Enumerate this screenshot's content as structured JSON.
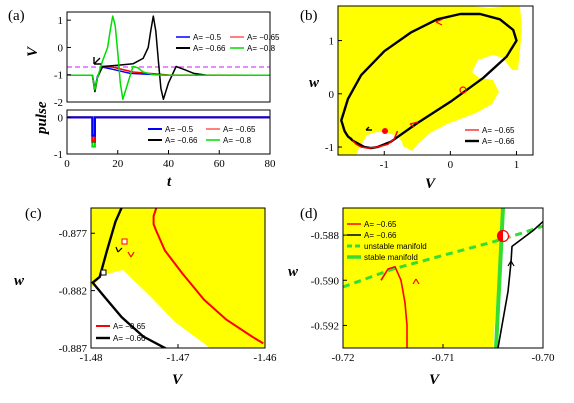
{
  "colors": {
    "red": "#ff0000",
    "black": "#000000",
    "blue": "#0000ff",
    "green": "#00dd00",
    "yellow": "#ffff00",
    "dash": "#dd44ff",
    "manifold": "#33dd33"
  },
  "chart_data": [
    {
      "panel": "(a)",
      "type": "line",
      "ylabel": "V",
      "xlabel": "",
      "xlim": [
        0,
        80
      ],
      "ylim": [
        -2,
        1.3
      ],
      "yticks": [
        "1",
        "0",
        "-1",
        "-2"
      ],
      "xticks": [
        "0",
        "20",
        "40",
        "60",
        "80"
      ],
      "threshold": -0.7,
      "legend": [
        "A= −0.5",
        "A= −0.65",
        "A= −0.66",
        "A= −0.8"
      ],
      "series": [
        {
          "name": "A= −0.5",
          "color": "blue",
          "x": [
            0,
            10,
            11,
            12,
            14,
            18,
            25,
            40,
            80
          ],
          "y": [
            -1.02,
            -1.02,
            -1.5,
            -1.05,
            -0.72,
            -0.8,
            -0.95,
            -1.02,
            -1.02
          ]
        },
        {
          "name": "A= −0.65",
          "color": "red",
          "x": [
            0,
            10,
            11,
            12,
            14,
            18,
            26,
            40,
            80
          ],
          "y": [
            -1.02,
            -1.02,
            -1.6,
            -1.1,
            -0.7,
            -0.72,
            -0.9,
            -1.01,
            -1.02
          ]
        },
        {
          "name": "A= −0.66",
          "color": "black",
          "x": [
            0,
            10,
            11,
            12,
            14,
            20,
            26,
            30,
            32,
            33,
            34,
            35,
            36,
            37,
            38,
            40,
            43,
            46,
            50,
            55,
            80
          ],
          "y": [
            -1.02,
            -1.02,
            -1.62,
            -1.1,
            -0.7,
            -0.65,
            -0.6,
            -0.4,
            0,
            0.6,
            1.15,
            0.6,
            -0.5,
            -1.5,
            -1.9,
            -1.3,
            -0.7,
            -0.8,
            -0.95,
            -1.02,
            -1.02
          ]
        },
        {
          "name": "A= −0.8",
          "color": "green",
          "x": [
            0,
            10,
            11,
            12,
            14,
            16,
            17,
            18,
            19,
            20,
            21,
            22,
            24,
            26,
            28,
            30,
            34,
            40,
            80
          ],
          "y": [
            -1.02,
            -1.02,
            -1.55,
            -1.1,
            -0.5,
            0,
            0.6,
            1.15,
            0.8,
            -0.2,
            -1.3,
            -1.9,
            -1.3,
            -0.7,
            -0.75,
            -0.9,
            -1.0,
            -1.02,
            -1.02
          ]
        }
      ]
    },
    {
      "panel": "(a) lower",
      "type": "line",
      "ylabel": "pulse",
      "xlabel": "t",
      "xlim": [
        0,
        80
      ],
      "ylim": [
        -1,
        0.2
      ],
      "yticks": [
        "0",
        "-1"
      ],
      "xticks": [
        "0",
        "20",
        "40",
        "60",
        "80"
      ],
      "legend": [
        "A= −0.5",
        "A= −0.65",
        "A= −0.66",
        "A= −0.8"
      ],
      "series": [
        {
          "name": "A= −0.5",
          "color": "blue",
          "pulse_start": 10,
          "pulse_end": 11,
          "amplitude": -0.5
        },
        {
          "name": "A= −0.65",
          "color": "red",
          "pulse_start": 10,
          "pulse_end": 11,
          "amplitude": -0.65
        },
        {
          "name": "A= −0.66",
          "color": "black",
          "pulse_start": 10,
          "pulse_end": 11,
          "amplitude": -0.66
        },
        {
          "name": "A= −0.8",
          "color": "green",
          "pulse_start": 10,
          "pulse_end": 11,
          "amplitude": -0.8
        }
      ]
    },
    {
      "panel": "(b)",
      "type": "line",
      "xlabel": "V",
      "ylabel": "w",
      "xlim": [
        -1.7,
        1.25
      ],
      "ylim": [
        -1.15,
        1.65
      ],
      "xticks": [
        "-1",
        "0",
        "1"
      ],
      "yticks": [
        "1",
        "0",
        "-1"
      ],
      "legend": [
        "A= −0.65",
        "A= −0.66"
      ],
      "series": [
        {
          "name": "A= −0.65",
          "color": "red",
          "x": [
            -1.48,
            -1.42,
            -1.35,
            -1.25,
            -1.1,
            -0.95,
            -0.85,
            -0.8
          ],
          "y": [
            -0.88,
            -0.95,
            -1.0,
            -1.02,
            -1.0,
            -0.95,
            -0.85,
            -0.7
          ]
        },
        {
          "name": "A= −0.66",
          "color": "black",
          "x": [
            -1.48,
            -1.3,
            -1.2,
            -1.1,
            -0.9,
            -0.5,
            0,
            0.5,
            0.85,
            1.0,
            0.95,
            0.75,
            0.45,
            0.15,
            -0.2,
            -0.6,
            -1.0,
            -1.35,
            -1.55,
            -1.65,
            -1.6,
            -1.55,
            -1.5,
            -1.48
          ],
          "y": [
            -0.88,
            -1.0,
            -1.02,
            -1.0,
            -0.9,
            -0.55,
            -0.15,
            0.3,
            0.7,
            1.0,
            1.2,
            1.4,
            1.5,
            1.5,
            1.4,
            1.15,
            0.8,
            0.35,
            -0.1,
            -0.5,
            -0.7,
            -0.8,
            -0.85,
            -0.88
          ]
        }
      ]
    },
    {
      "panel": "(c)",
      "type": "line",
      "xlabel": "V",
      "ylabel": "w",
      "xlim": [
        -1.48,
        -1.46
      ],
      "ylim": [
        -0.887,
        -0.8748
      ],
      "xticks": [
        "-1.48",
        "-1.47",
        "-1.46"
      ],
      "yticks": [
        "-0.877",
        "-0.882",
        "-0.887"
      ],
      "legend": [
        "A= −0.65",
        "A= −0.66"
      ],
      "series": [
        {
          "name": "A= −0.65",
          "color": "red",
          "x": [
            -1.4725,
            -1.4728,
            -1.4728,
            -1.4725,
            -1.4715,
            -1.4695,
            -1.467,
            -1.4645,
            -1.4615,
            -1.4602
          ],
          "y": [
            -0.8748,
            -0.8755,
            -0.8762,
            -0.8768,
            -0.8785,
            -0.8805,
            -0.8828,
            -0.8845,
            -0.886,
            -0.8866
          ]
        },
        {
          "name": "A= −0.66",
          "color": "black",
          "x": [
            -1.4765,
            -1.4772,
            -1.4782,
            -1.479,
            -1.4798,
            -1.4785,
            -1.4765,
            -1.474,
            -1.471,
            -1.468
          ],
          "y": [
            -0.8748,
            -0.876,
            -0.8786,
            -0.8808,
            -0.8813,
            -0.8825,
            -0.8843,
            -0.886,
            -0.8872,
            -0.8881
          ]
        }
      ]
    },
    {
      "panel": "(d)",
      "type": "line",
      "xlabel": "V",
      "ylabel": "w",
      "xlim": [
        -0.72,
        -0.7
      ],
      "ylim": [
        -0.593,
        -0.5868
      ],
      "xticks": [
        "-0.72",
        "-0.71",
        "-0.70"
      ],
      "yticks": [
        "-0.588",
        "-0.590",
        "-0.592"
      ],
      "legend": [
        "A= −0.65",
        "A= −0.66",
        "unstable manifold",
        "stable manifold"
      ],
      "series": [
        {
          "name": "A= −0.65",
          "color": "red",
          "x": [
            -0.7162,
            -0.7155,
            -0.7148,
            -0.7142,
            -0.7138,
            -0.7136,
            -0.7136
          ],
          "y": [
            -0.59,
            -0.5895,
            -0.5894,
            -0.59,
            -0.591,
            -0.592,
            -0.593
          ]
        },
        {
          "name": "A= −0.66",
          "color": "black",
          "x": [
            -0.7045,
            -0.7035,
            -0.7032,
            -0.7031,
            -0.7022,
            -0.701,
            -0.6995
          ],
          "y": [
            -0.593,
            -0.5905,
            -0.5892,
            -0.5885,
            -0.5882,
            -0.5878,
            -0.5872
          ]
        },
        {
          "name": "unstable manifold",
          "color": "manifold",
          "dashed": true,
          "x": [
            -0.72,
            -0.715,
            -0.71,
            -0.705,
            -0.702,
            -0.7
          ],
          "y": [
            -0.5903,
            -0.5895,
            -0.5889,
            -0.5883,
            -0.5879,
            -0.5876
          ]
        },
        {
          "name": "stable manifold",
          "color": "manifold",
          "x": [
            -0.7047,
            -0.7043,
            -0.704
          ],
          "y": [
            -0.593,
            -0.5895,
            -0.5868
          ]
        }
      ],
      "saddle": {
        "x": -0.704,
        "y": -0.5881
      }
    }
  ]
}
